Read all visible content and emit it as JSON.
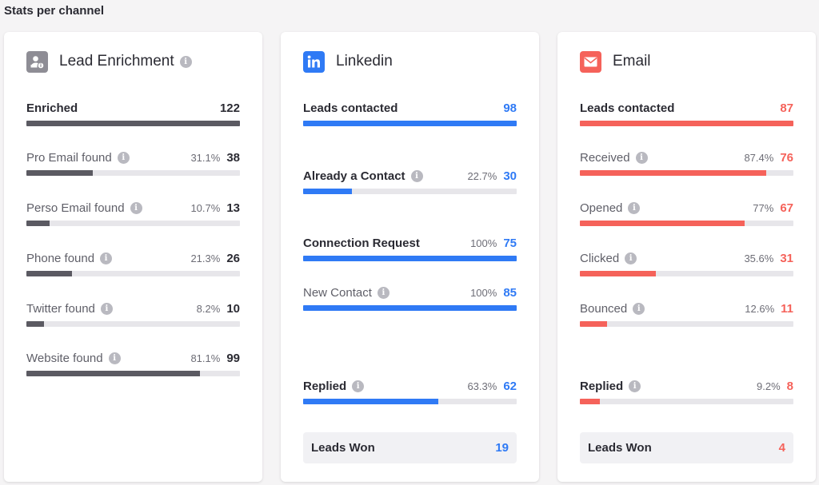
{
  "page_title": "Stats per channel",
  "colors": {
    "lead": "#5b5a62",
    "linkedin": "#2f7af5",
    "email": "#f5625a",
    "track": "#e7e6ea"
  },
  "lead_enrichment": {
    "title": "Lead Enrichment",
    "icon": "user-search-icon",
    "summary": {
      "label": "Enriched",
      "value": "122",
      "fill": 1.0
    },
    "rows": [
      {
        "label": "Pro Email found",
        "pct": "31.1%",
        "value": "38",
        "fill": 0.311
      },
      {
        "label": "Perso Email found",
        "pct": "10.7%",
        "value": "13",
        "fill": 0.107
      },
      {
        "label": "Phone found",
        "pct": "21.3%",
        "value": "26",
        "fill": 0.213
      },
      {
        "label": "Twitter found",
        "pct": "8.2%",
        "value": "10",
        "fill": 0.082
      },
      {
        "label": "Website found",
        "pct": "81.1%",
        "value": "99",
        "fill": 0.811
      }
    ]
  },
  "linkedin": {
    "title": "Linkedin",
    "icon": "linkedin-icon",
    "summary": {
      "label": "Leads contacted",
      "value": "98",
      "fill": 1.0
    },
    "already_contact": {
      "label": "Already a Contact",
      "pct": "22.7%",
      "value": "30",
      "fill": 0.227
    },
    "connection_request": {
      "label": "Connection Request",
      "pct": "100%",
      "value": "75",
      "fill": 1.0
    },
    "new_contact": {
      "label": "New Contact",
      "pct": "100%",
      "value": "85",
      "fill": 1.0
    },
    "replied": {
      "label": "Replied",
      "pct": "63.3%",
      "value": "62",
      "fill": 0.633
    },
    "won": {
      "label": "Leads Won",
      "value": "19"
    }
  },
  "email": {
    "title": "Email",
    "icon": "envelope-icon",
    "summary": {
      "label": "Leads contacted",
      "value": "87",
      "fill": 1.0
    },
    "rows": [
      {
        "label": "Received",
        "pct": "87.4%",
        "value": "76",
        "fill": 0.874
      },
      {
        "label": "Opened",
        "pct": "77%",
        "value": "67",
        "fill": 0.77
      },
      {
        "label": "Clicked",
        "pct": "35.6%",
        "value": "31",
        "fill": 0.356
      },
      {
        "label": "Bounced",
        "pct": "12.6%",
        "value": "11",
        "fill": 0.126
      }
    ],
    "replied": {
      "label": "Replied",
      "pct": "9.2%",
      "value": "8",
      "fill": 0.092
    },
    "won": {
      "label": "Leads Won",
      "value": "4"
    }
  }
}
